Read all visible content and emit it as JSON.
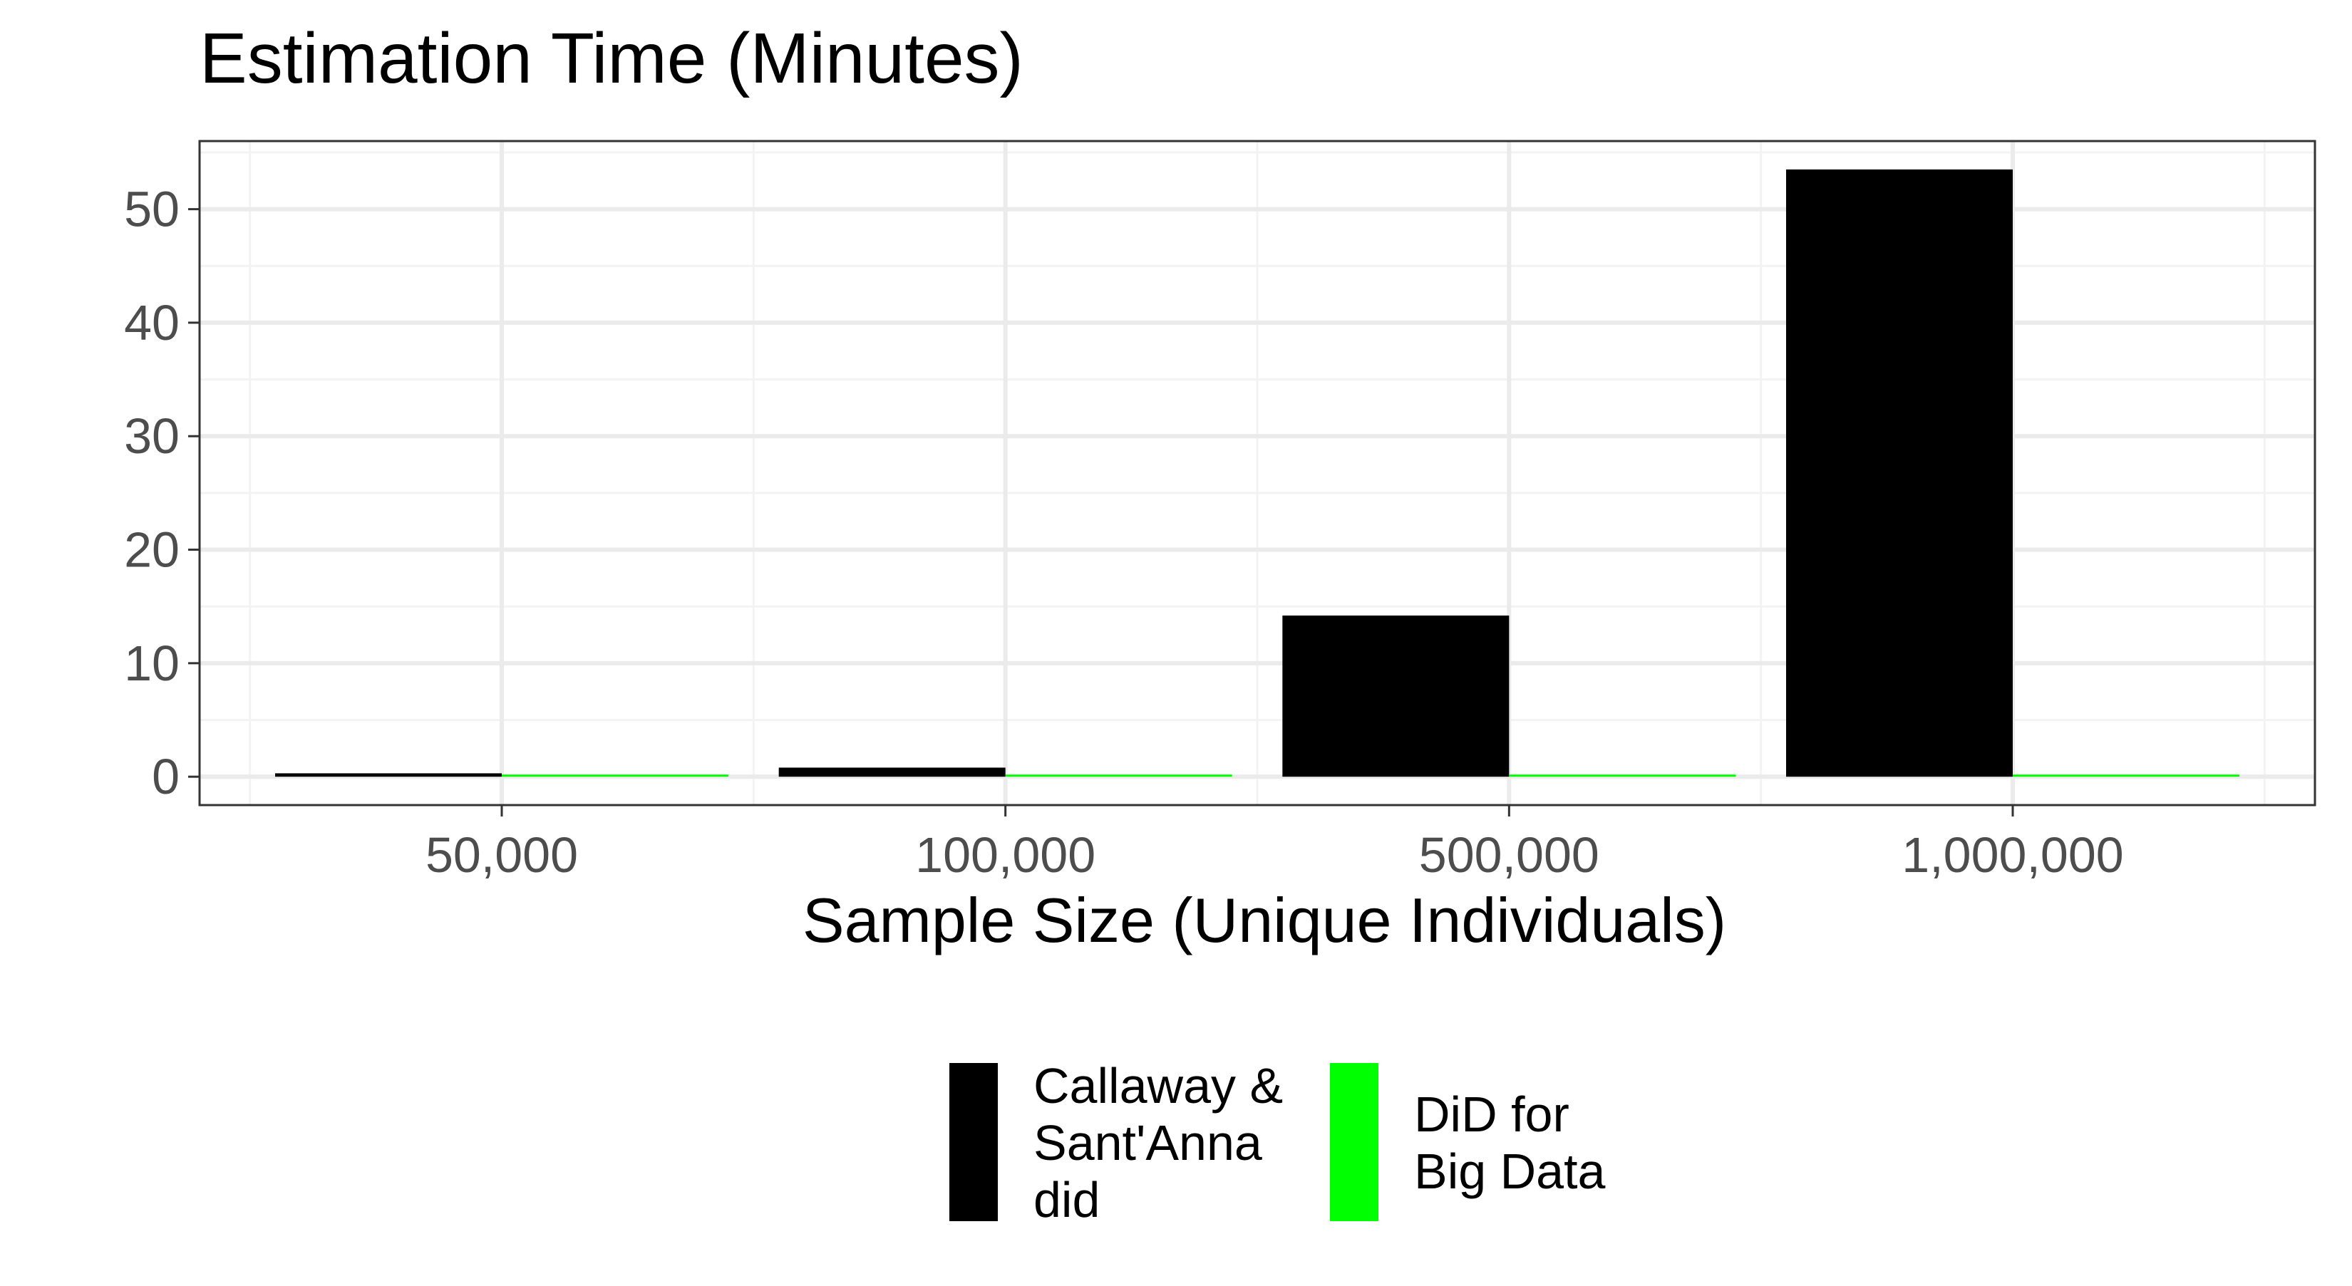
{
  "chart_data": {
    "type": "bar",
    "title": "Estimation Time (Minutes)",
    "xlabel": "Sample Size (Unique Individuals)",
    "ylabel": "",
    "categories": [
      "50,000",
      "100,000",
      "500,000",
      "1,000,000"
    ],
    "series": [
      {
        "name": "Callaway & Sant'Anna did",
        "legend_lines": [
          "Callaway &",
          "Sant'Anna",
          "did"
        ],
        "color": "#000000",
        "values": [
          0.3,
          0.8,
          14.2,
          53.5
        ]
      },
      {
        "name": "DiD for Big Data",
        "legend_lines": [
          "DiD for",
          "Big Data"
        ],
        "color": "#00ff00",
        "values": [
          0.02,
          0.03,
          0.08,
          0.15
        ]
      }
    ],
    "ylim": [
      -2.5,
      56
    ],
    "yticks": [
      0,
      10,
      20,
      30,
      40,
      50
    ],
    "y_minor_ticks": [
      5,
      15,
      25,
      35,
      45,
      55
    ],
    "grid": true,
    "legend_position": "bottom",
    "theme": {
      "panel_border": "#333333",
      "grid_major": "#ebebeb",
      "grid_minor": "#f3f3f3",
      "tick_text": "#4d4d4d",
      "title_text": "#000000"
    }
  }
}
